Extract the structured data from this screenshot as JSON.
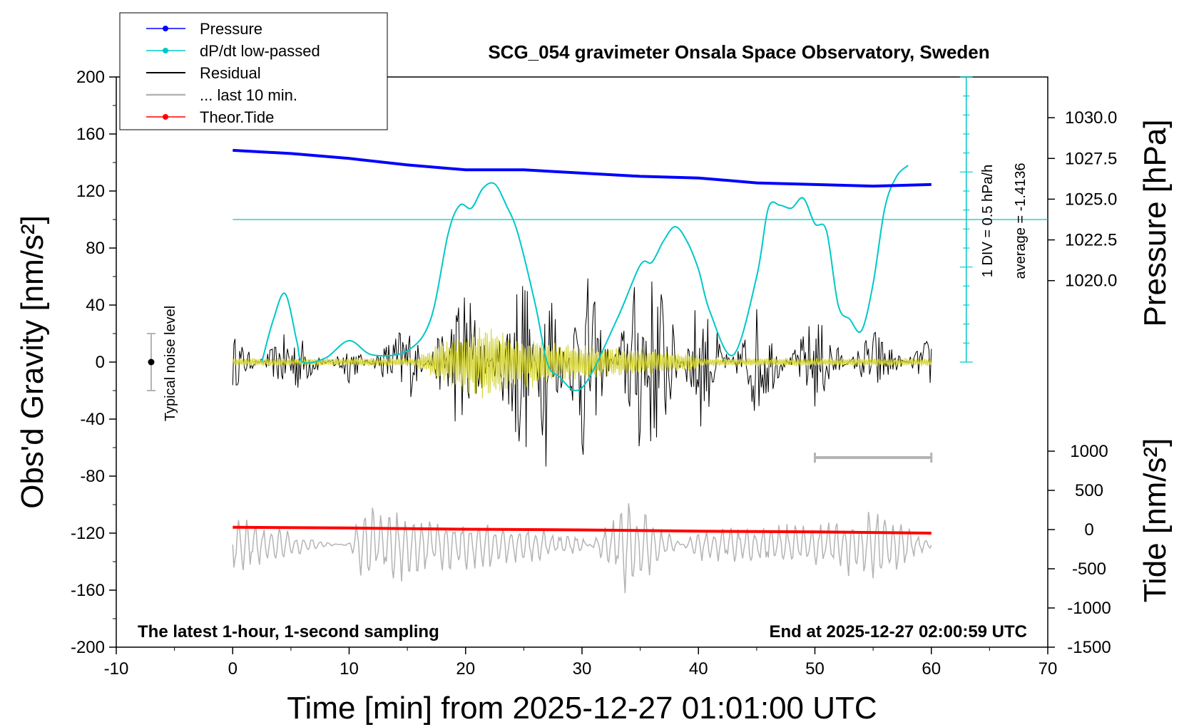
{
  "chart_data": {
    "type": "line",
    "title": "SCG_054 gravimeter Onsala Space Observatory, Sweden",
    "xlabel": "Time [min] from 2025-12-27 01:01:00 UTC",
    "ylabel_left": "Obs'd Gravity [nm/s²]",
    "ylabel_right_top": "Pressure [hPa]",
    "ylabel_right_bottom": "Tide [nm/s²]",
    "xlim": [
      -10,
      70
    ],
    "ylim_left": [
      -200,
      200
    ],
    "pressure_lim": [
      1015.0,
      1032.5
    ],
    "tide_lim": [
      -1500,
      1500
    ],
    "x_ticks": [
      "-10",
      "0",
      "10",
      "20",
      "30",
      "40",
      "50",
      "60",
      "70"
    ],
    "y_left_ticks": [
      "200",
      "160",
      "120",
      "80",
      "40",
      "0",
      "-40",
      "-80",
      "-120",
      "-160",
      "-200"
    ],
    "pressure_ticks": [
      "1030.0",
      "1027.5",
      "1025.0",
      "1022.5",
      "1020.0"
    ],
    "tide_ticks": [
      "1000",
      "500",
      "0",
      "-500",
      "-1000",
      "-1500"
    ],
    "bottom_left_note": "The latest 1-hour, 1-second sampling",
    "bottom_right_note": "End at 2025-12-27 02:00:59 UTC",
    "scale_bar_label": "1 DIV = 0.5 hPa/h",
    "average_label": "average = -1.4136",
    "noise_label": "Typical noise level",
    "legend_position": "top-left",
    "legend": [
      {
        "label": "Pressure",
        "color": "#0000ff",
        "marker": "dot"
      },
      {
        "label": "dP/dt low-passed",
        "color": "#00c8c8",
        "marker": "dot"
      },
      {
        "label": "Residual",
        "color": "#000000",
        "marker": "none"
      },
      {
        "label": "... last 10 min.",
        "color": "#b4b4b4",
        "marker": "none"
      },
      {
        "label": "Theor.Tide",
        "color": "#ff0000",
        "marker": "dot"
      }
    ],
    "series": [
      {
        "name": "Pressure",
        "axis": "pressure",
        "color": "#0000ff",
        "x": [
          0,
          5,
          10,
          15,
          20,
          25,
          30,
          35,
          40,
          45,
          50,
          55,
          60
        ],
        "values": [
          1028.0,
          1027.8,
          1027.5,
          1027.1,
          1026.8,
          1026.8,
          1026.6,
          1026.4,
          1026.3,
          1026.0,
          1025.9,
          1025.8,
          1025.9
        ]
      },
      {
        "name": "dP/dt low-passed",
        "axis": "gravity",
        "color": "#00c8c8",
        "x": [
          2.5,
          3.5,
          4.5,
          5.5,
          6,
          8,
          10,
          12,
          15,
          17,
          18.5,
          19.5,
          20.5,
          21.5,
          22.5,
          23.5,
          24.5,
          26,
          27,
          28,
          30,
          33,
          35,
          36,
          37,
          38,
          39,
          40,
          41,
          43,
          45,
          46,
          47,
          48,
          49,
          50,
          51,
          52,
          53,
          54,
          55,
          56,
          57,
          58
        ],
        "values": [
          0,
          30,
          48,
          15,
          0,
          3,
          15,
          5,
          8,
          30,
          90,
          110,
          108,
          122,
          125,
          110,
          90,
          40,
          0,
          -10,
          -18,
          30,
          68,
          70,
          85,
          95,
          85,
          65,
          35,
          5,
          60,
          108,
          110,
          108,
          115,
          97,
          92,
          40,
          30,
          22,
          55,
          108,
          130,
          138
        ]
      },
      {
        "name": "Residual",
        "axis": "gravity",
        "color": "#000000",
        "x": [
          0,
          5,
          10,
          15,
          20,
          25,
          27,
          30,
          35,
          37,
          40,
          45,
          50,
          55,
          60
        ],
        "values": [
          -20,
          25,
          -15,
          30,
          -60,
          80,
          -85,
          75,
          -70,
          -55,
          50,
          -40,
          35,
          -25,
          20
        ]
      },
      {
        "name": "Filtered residual",
        "axis": "gravity",
        "color": "#d2d228",
        "x": [
          16,
          18,
          20,
          22,
          24,
          26,
          30,
          35,
          40
        ],
        "values": [
          5,
          15,
          22,
          28,
          20,
          18,
          12,
          10,
          6
        ]
      },
      {
        "name": "... last 10 min.",
        "axis": "gravity",
        "color": "#b4b4b4",
        "x": [
          0,
          10,
          11,
          20,
          30,
          34,
          40,
          50,
          56,
          60
        ],
        "values": [
          -107,
          -130,
          -157,
          -150,
          -135,
          -90,
          -140,
          -145,
          -157,
          -130
        ]
      },
      {
        "name": "Theor.Tide",
        "axis": "tide",
        "color": "#ff0000",
        "x": [
          0,
          10,
          20,
          30,
          40,
          50,
          60
        ],
        "values": [
          30,
          20,
          5,
          -5,
          -20,
          -30,
          -45
        ]
      },
      {
        "name": "Typical noise level",
        "axis": "gravity",
        "color": "#000000",
        "x": [
          -7
        ],
        "values": [
          0
        ],
        "range": [
          -20,
          20
        ]
      },
      {
        "name": "Last 10 min span",
        "axis": "time",
        "color": "#b4b4b4",
        "range": [
          50,
          60
        ]
      }
    ]
  }
}
